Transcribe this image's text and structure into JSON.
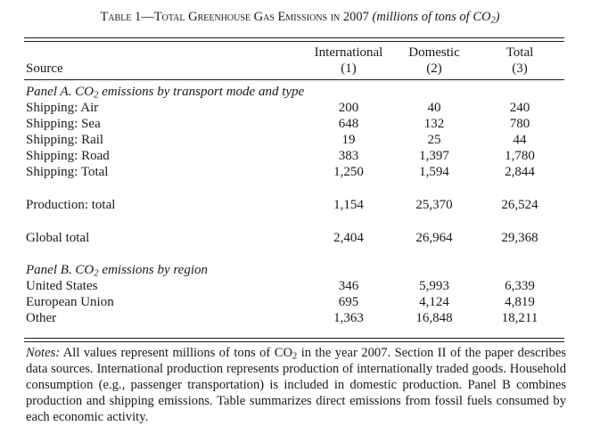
{
  "title": {
    "prefix": "Table 1—Total Greenhouse Gas Emissions in 2007",
    "units_open": "(millions of tons of CO",
    "units_sub": "2",
    "units_close": ")"
  },
  "columns": [
    {
      "name": "International",
      "num": "(1)"
    },
    {
      "name": "Domestic",
      "num": "(2)"
    },
    {
      "name": "Total",
      "num": "(3)"
    }
  ],
  "source_label": "Source",
  "panel_a": {
    "heading_pre": "Panel A. CO",
    "heading_sub": "2",
    "heading_post": " emissions by transport mode and type",
    "rows": [
      {
        "label": "Shipping: Air",
        "values": [
          "200",
          "40",
          "240"
        ]
      },
      {
        "label": "Shipping: Sea",
        "values": [
          "648",
          "132",
          "780"
        ]
      },
      {
        "label": "Shipping: Rail",
        "values": [
          "19",
          "25",
          "44"
        ]
      },
      {
        "label": "Shipping: Road",
        "values": [
          "383",
          "1,397",
          "1,780"
        ]
      },
      {
        "label": "Shipping: Total",
        "values": [
          "1,250",
          "1,594",
          "2,844"
        ]
      }
    ],
    "production": {
      "label": "Production: total",
      "values": [
        "1,154",
        "25,370",
        "26,524"
      ]
    },
    "global": {
      "label": "Global total",
      "values": [
        "2,404",
        "26,964",
        "29,368"
      ]
    }
  },
  "panel_b": {
    "heading_pre": "Panel B. CO",
    "heading_sub": "2",
    "heading_post": " emissions by region",
    "rows": [
      {
        "label": "United States",
        "values": [
          "346",
          "5,993",
          "6,339"
        ]
      },
      {
        "label": "European Union",
        "values": [
          "695",
          "4,124",
          "4,819"
        ]
      },
      {
        "label": "Other",
        "values": [
          "1,363",
          "16,848",
          "18,211"
        ]
      }
    ]
  },
  "notes": {
    "label": "Notes:",
    "text_pre": " All values represent millions of tons of CO",
    "text_sub": "2",
    "text_post": " in the year 2007. Section II of the paper describes data sources. International production represents production of internationally traded goods. Household consumption (e.g., passenger transportation) is included in domestic production. Panel B combines production and shipping emissions. Table summarizes direct emissions from fossil fuels consumed by each economic activity."
  }
}
